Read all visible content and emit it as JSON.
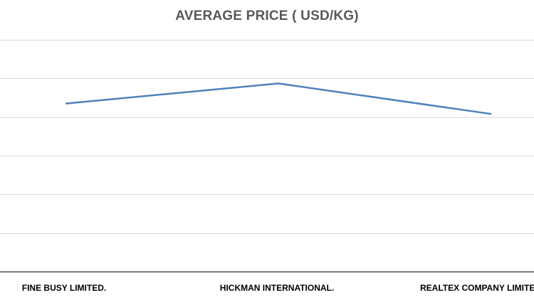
{
  "chart_data": {
    "type": "line",
    "title": "AVERAGE PRICE ( USD/KG)",
    "categories": [
      "FINE BUSY LIMITED.",
      "HICKMAN INTERNATIONAL.",
      "REALTEX COMPANY LIMITED"
    ],
    "series": [
      {
        "values": [
          4.35,
          4.87,
          4.08
        ]
      }
    ],
    "ylim": [
      0,
      6
    ],
    "grid": true,
    "colors": {
      "line": "#4f81bd",
      "grid": "#d9d9d9",
      "axis": "#000000"
    }
  }
}
